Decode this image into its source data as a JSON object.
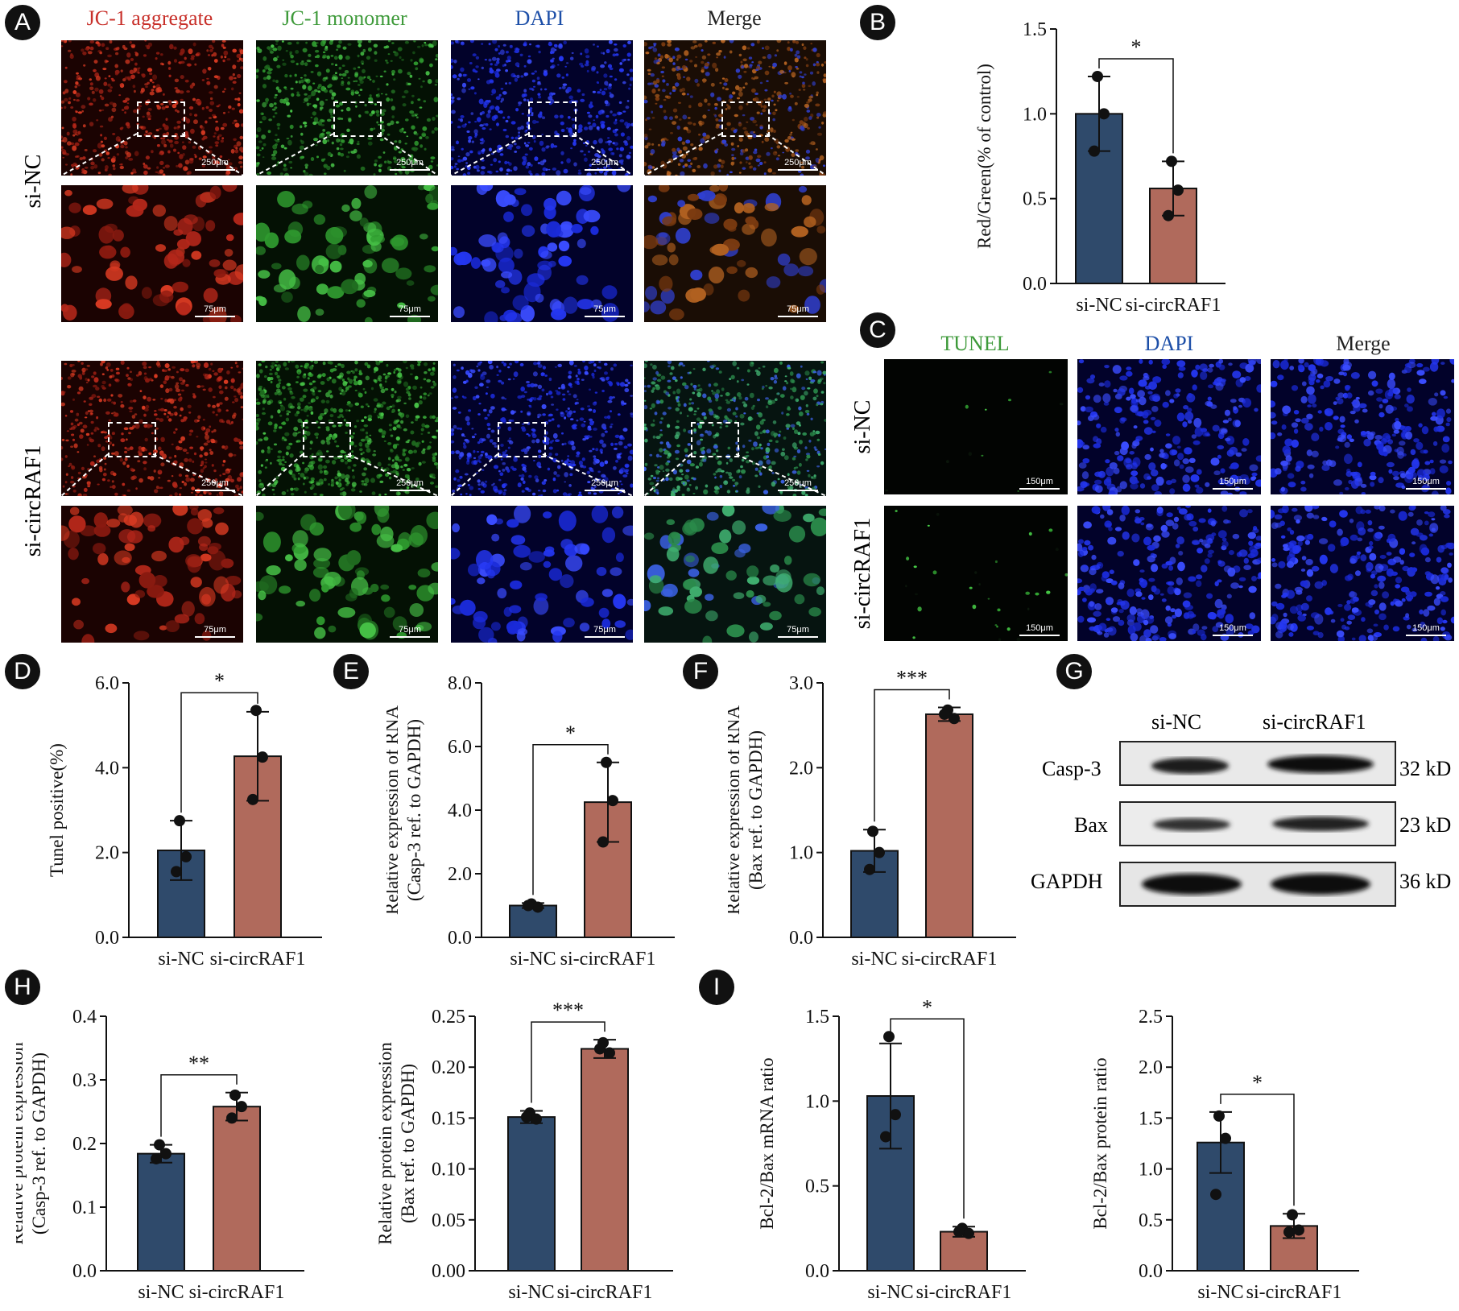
{
  "colors": {
    "red_channel": "#c8302a",
    "green_channel": "#3e9a3a",
    "blue_channel": "#1d4fa8",
    "dark_label": "#222222",
    "bar_navy": "#2f4a6b",
    "bar_rust": "#b06a5c"
  },
  "panels": {
    "A": {
      "letter": "A",
      "cols": [
        "JC-1 aggregate",
        "JC-1 monomer",
        "DAPI",
        "Merge"
      ],
      "rows": [
        "si-NC",
        "si-circRAF1"
      ],
      "scale_low": "250μm",
      "scale_high": "75μm"
    },
    "B": {
      "letter": "B"
    },
    "C": {
      "letter": "C",
      "cols": [
        "TUNEL",
        "DAPI",
        "Merge"
      ],
      "rows": [
        "si-NC",
        "si-circRAF1"
      ],
      "scale": "150μm"
    },
    "D": {
      "letter": "D"
    },
    "E": {
      "letter": "E"
    },
    "F": {
      "letter": "F"
    },
    "G": {
      "letter": "G",
      "lanes": [
        "si-NC",
        "si-circRAF1"
      ],
      "proteins": [
        "Casp-3",
        "Bax",
        "GAPDH"
      ],
      "sizes": [
        "32 kD",
        "23 kD",
        "36 kD"
      ]
    },
    "H": {
      "letter": "H"
    },
    "I": {
      "letter": "I"
    }
  },
  "chart_data": [
    {
      "id": "B",
      "type": "bar",
      "categories": [
        "si-NC",
        "si-circRAF1"
      ],
      "values": [
        1.0,
        0.56
      ],
      "errors": [
        0.22,
        0.16
      ],
      "points": [
        [
          1.22,
          1.0,
          0.78
        ],
        [
          0.72,
          0.55,
          0.4
        ]
      ],
      "ylabel": "Red/Green(% of control)",
      "ylim": [
        0,
        1.5
      ],
      "yticks": [
        "0.0",
        "0.5",
        "1.0",
        "1.5"
      ],
      "significance": "*"
    },
    {
      "id": "D",
      "type": "bar",
      "categories": [
        "si-NC",
        "si-circRAF1"
      ],
      "values": [
        2.05,
        4.27
      ],
      "errors": [
        0.7,
        1.05
      ],
      "points": [
        [
          2.75,
          1.9,
          1.55
        ],
        [
          5.35,
          4.25,
          3.25
        ]
      ],
      "ylabel": "Tunel positive(%)",
      "ylim": [
        0,
        6
      ],
      "yticks": [
        "0.0",
        "2.0",
        "4.0",
        "6.0"
      ],
      "significance": "*"
    },
    {
      "id": "E",
      "type": "bar",
      "categories": [
        "si-NC",
        "si-circRAF1"
      ],
      "values": [
        1.0,
        4.25
      ],
      "errors": [
        0.08,
        1.25
      ],
      "points": [
        [
          1.05,
          0.95,
          1.0
        ],
        [
          5.5,
          4.3,
          3.0
        ]
      ],
      "ylabel": [
        "Relative expression of RNA",
        "(Casp-3 ref. to GAPDH)"
      ],
      "ylim": [
        0,
        8
      ],
      "yticks": [
        "0.0",
        "2.0",
        "4.0",
        "6.0",
        "8.0"
      ],
      "significance": "*"
    },
    {
      "id": "F",
      "type": "bar",
      "categories": [
        "si-NC",
        "si-circRAF1"
      ],
      "values": [
        1.02,
        2.63
      ],
      "errors": [
        0.25,
        0.08
      ],
      "points": [
        [
          1.25,
          1.0,
          0.8
        ],
        [
          2.68,
          2.58,
          2.63
        ]
      ],
      "ylabel": [
        "Relative expression of RNA",
        "(Bax ref. to GAPDH)"
      ],
      "ylim": [
        0,
        3
      ],
      "yticks": [
        "0.0",
        "1.0",
        "2.0",
        "3.0"
      ],
      "significance": "***"
    },
    {
      "id": "H1",
      "type": "bar",
      "categories": [
        "si-NC",
        "si-circRAF1"
      ],
      "values": [
        0.184,
        0.258
      ],
      "errors": [
        0.014,
        0.022
      ],
      "points": [
        [
          0.198,
          0.184,
          0.176
        ],
        [
          0.276,
          0.258,
          0.24
        ]
      ],
      "ylabel": [
        "Relative protein expression",
        "(Casp-3 ref. to GAPDH)"
      ],
      "ylim": [
        0,
        0.4
      ],
      "yticks": [
        "0.0",
        "0.1",
        "0.2",
        "0.3",
        "0.4"
      ],
      "significance": "**"
    },
    {
      "id": "H2",
      "type": "bar",
      "categories": [
        "si-NC",
        "si-circRAF1"
      ],
      "values": [
        0.151,
        0.218
      ],
      "errors": [
        0.006,
        0.009
      ],
      "points": [
        [
          0.155,
          0.149,
          0.151
        ],
        [
          0.224,
          0.214,
          0.218
        ]
      ],
      "ylabel": [
        "Relative protein expression",
        "(Bax ref. to GAPDH)"
      ],
      "ylim": [
        0,
        0.25
      ],
      "yticks": [
        "0.00",
        "0.05",
        "0.10",
        "0.15",
        "0.20",
        "0.25"
      ],
      "significance": "***"
    },
    {
      "id": "I1",
      "type": "bar",
      "categories": [
        "si-NC",
        "si-circRAF1"
      ],
      "values": [
        1.03,
        0.23
      ],
      "errors": [
        0.31,
        0.03
      ],
      "points": [
        [
          1.38,
          0.92,
          0.79
        ],
        [
          0.25,
          0.22,
          0.23
        ]
      ],
      "ylabel": "Bcl-2/Bax mRNA ratio",
      "ylim": [
        0,
        1.5
      ],
      "yticks": [
        "0.0",
        "0.5",
        "1.0",
        "1.5"
      ],
      "significance": "*"
    },
    {
      "id": "I2",
      "type": "bar",
      "categories": [
        "si-NC",
        "si-circRAF1"
      ],
      "values": [
        1.26,
        0.44
      ],
      "errors": [
        0.3,
        0.12
      ],
      "points": [
        [
          1.52,
          1.3,
          0.75
        ],
        [
          0.55,
          0.4,
          0.38
        ]
      ],
      "ylabel": "Bcl-2/Bax protein ratio",
      "ylim": [
        0,
        2.5
      ],
      "yticks": [
        "0.0",
        "0.5",
        "1.0",
        "1.5",
        "2.0",
        "2.5"
      ],
      "significance": "*"
    }
  ]
}
